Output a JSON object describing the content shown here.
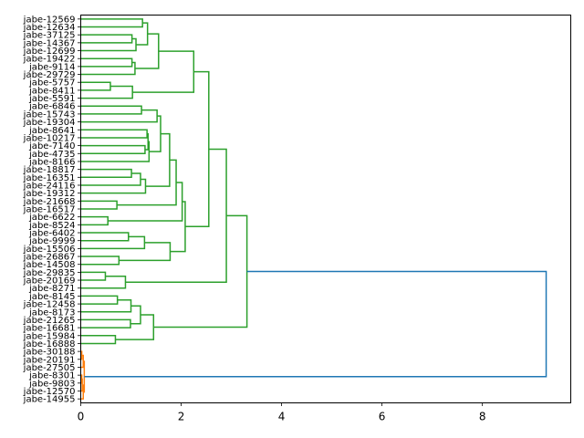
{
  "chart_data": {
    "type": "dendrogram",
    "orientation": "right",
    "title": "",
    "xlabel": "",
    "ylabel": "",
    "xlim": [
      0,
      9.76
    ],
    "xticks": [
      0,
      2,
      4,
      6,
      8
    ],
    "xtick_labels": [
      "0",
      "2",
      "4",
      "6",
      "8"
    ],
    "grid": false,
    "colors": {
      "cluster1": "#2ca02c",
      "cluster2": "#ff7f0e",
      "above_threshold": "#1f77b4"
    },
    "leaves": [
      "jabe-12569",
      "jabe-12634",
      "jabe-37125",
      "jabe-14367",
      "jabe-12699",
      "jabe-19422",
      "jabe-9114",
      "jabe-29729",
      "jabe-5757",
      "jabe-8411",
      "jabe-5591",
      "jabe-6846",
      "jabe-15743",
      "jabe-19304",
      "jabe-8641",
      "jabe-10217",
      "jabe-7140",
      "jabe-4735",
      "jabe-8166",
      "jabe-18817",
      "jabe-16351",
      "jabe-24116",
      "jabe-19312",
      "jabe-21668",
      "jabe-16517",
      "jabe-6622",
      "jabe-8524",
      "jabe-6402",
      "jabe-9999",
      "jabe-15506",
      "jabe-26867",
      "jabe-14508",
      "jabe-29835",
      "jabe-20169",
      "jabe-8271",
      "jabe-8145",
      "jabe-12458",
      "jabe-8173",
      "jabe-21265",
      "jabe-16681",
      "jabe-15984",
      "jabe-16888",
      "jabe-30188",
      "jabe-20191",
      "jabe-27505",
      "jabe-8301",
      "jabe-9803",
      "jabe-12570",
      "jabe-14955"
    ],
    "tree": {
      "h": 9.27,
      "color": "#1f77b4",
      "c": [
        {
          "h": 3.31,
          "color": "#2ca02c",
          "c": [
            {
              "h": 2.9,
              "c": [
                {
                  "h": 2.55,
                  "c": [
                    {
                      "h": 2.25,
                      "c": [
                        {
                          "h": 1.55,
                          "c": [
                            {
                              "h": 1.33,
                              "c": [
                                {
                                  "h": 1.23,
                                  "c": [
                                    0,
                                    1
                                  ]
                                },
                                {
                                  "h": 1.1,
                                  "c": [
                                    {
                                      "h": 1.02,
                                      "c": [
                                        2,
                                        3
                                      ]
                                    },
                                    4
                                  ]
                                }
                              ]
                            },
                            {
                              "h": 1.08,
                              "c": [
                                {
                                  "h": 1.02,
                                  "c": [
                                    5,
                                    6
                                  ]
                                },
                                7
                              ]
                            }
                          ]
                        },
                        {
                          "h": 1.03,
                          "c": [
                            {
                              "h": 0.59,
                              "c": [
                                8,
                                9
                              ]
                            },
                            10
                          ]
                        }
                      ]
                    },
                    {
                      "h": 2.08,
                      "c": [
                        {
                          "h": 2.02,
                          "c": [
                            {
                              "h": 1.9,
                              "c": [
                                {
                                  "h": 1.77,
                                  "c": [
                                    {
                                      "h": 1.59,
                                      "c": [
                                        {
                                          "h": 1.52,
                                          "c": [
                                            {
                                              "h": 1.21,
                                              "c": [
                                                11,
                                                12
                                              ]
                                            },
                                            13
                                          ]
                                        },
                                        {
                                          "h": 1.36,
                                          "c": [
                                            {
                                              "h": 1.34,
                                              "c": [
                                                {
                                                  "h": 1.32,
                                                  "c": [
                                                    14,
                                                    15
                                                  ]
                                                },
                                                {
                                                  "h": 1.28,
                                                  "c": [
                                                    16,
                                                    17
                                                  ]
                                                }
                                              ]
                                            },
                                            18
                                          ]
                                        }
                                      ]
                                    },
                                    {
                                      "h": 1.29,
                                      "c": [
                                        {
                                          "h": 1.19,
                                          "c": [
                                            {
                                              "h": 1.01,
                                              "c": [
                                                19,
                                                20
                                              ]
                                            },
                                            21
                                          ]
                                        },
                                        22
                                      ]
                                    }
                                  ]
                                },
                                {
                                  "h": 0.72,
                                  "c": [
                                    23,
                                    24
                                  ]
                                }
                              ]
                            },
                            {
                              "h": 0.54,
                              "c": [
                                25,
                                26
                              ]
                            }
                          ]
                        },
                        {
                          "h": 1.78,
                          "c": [
                            {
                              "h": 1.27,
                              "c": [
                                {
                                  "h": 0.95,
                                  "c": [
                                    27,
                                    28
                                  ]
                                },
                                29
                              ]
                            },
                            {
                              "h": 0.76,
                              "c": [
                                30,
                                31
                              ]
                            }
                          ]
                        }
                      ]
                    }
                  ]
                },
                {
                  "h": 0.89,
                  "c": [
                    {
                      "h": 0.49,
                      "c": [
                        32,
                        33
                      ]
                    },
                    34
                  ]
                }
              ]
            },
            {
              "h": 1.45,
              "c": [
                {
                  "h": 1.19,
                  "c": [
                    {
                      "h": 1.0,
                      "c": [
                        {
                          "h": 0.73,
                          "c": [
                            35,
                            36
                          ]
                        },
                        37
                      ]
                    },
                    {
                      "h": 0.99,
                      "c": [
                        38,
                        39
                      ]
                    }
                  ]
                },
                {
                  "h": 0.69,
                  "c": [
                    40,
                    41
                  ]
                }
              ]
            }
          ]
        },
        {
          "h": 0.07,
          "color": "#ff7f0e",
          "c": [
            {
              "h": 0.05,
              "c": [
                {
                  "h": 0.02,
                  "c": [
                    42,
                    43
                  ]
                },
                44
              ]
            },
            {
              "h": 0.05,
              "c": [
                {
                  "h": 0.03,
                  "c": [
                    {
                      "h": 0.02,
                      "c": [
                        45,
                        46
                      ]
                    },
                    47
                  ]
                },
                48
              ]
            }
          ]
        }
      ]
    }
  }
}
